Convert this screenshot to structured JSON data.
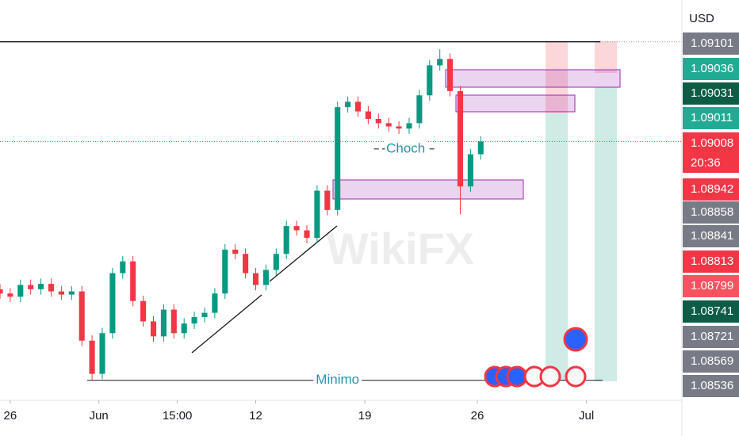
{
  "chart_data": {
    "type": "candlestick",
    "axis_unit": "USD",
    "watermark": "WikiFX",
    "up_color": "#089981",
    "down_color": "#f23645",
    "xlim": [
      0,
      200
    ],
    "ylim": [
      1.0877,
      1.0914
    ],
    "xticks": [
      {
        "value": 3,
        "label": "26"
      },
      {
        "value": 29,
        "label": "Jun"
      },
      {
        "value": 52,
        "label": "15:00"
      },
      {
        "value": 75,
        "label": "12"
      },
      {
        "value": 107,
        "label": "19"
      },
      {
        "value": 140,
        "label": "26"
      },
      {
        "value": 172,
        "label": "Jul"
      }
    ],
    "x": [
      0,
      3,
      6,
      9,
      12,
      15,
      18,
      21,
      24,
      27,
      30,
      33,
      36,
      39,
      42,
      45,
      48,
      51,
      54,
      57,
      60,
      63,
      66,
      69,
      72,
      75,
      78,
      81,
      84,
      87,
      90,
      93,
      96,
      99,
      102,
      105,
      108,
      111,
      114,
      117,
      120,
      123,
      126,
      129,
      132,
      135,
      138,
      141
    ],
    "open": [
      1.0887,
      1.08866,
      1.08863,
      1.08874,
      1.0887,
      1.08875,
      1.08868,
      1.08865,
      1.08868,
      1.08822,
      1.08791,
      1.08829,
      1.08885,
      1.08896,
      1.08859,
      1.0884,
      1.08826,
      1.08851,
      1.08829,
      1.08838,
      1.08844,
      1.08848,
      1.08866,
      1.08907,
      1.08903,
      1.08885,
      1.08874,
      1.08888,
      1.08903,
      1.08929,
      1.08925,
      1.08918,
      1.08962,
      1.08944,
      1.0904,
      1.09045,
      1.09036,
      1.09029,
      1.09025,
      1.09022,
      1.0902,
      1.09025,
      1.09051,
      1.09079,
      1.09085,
      1.09055,
      1.08966,
      1.08996
    ],
    "high": [
      1.08875,
      1.08871,
      1.08879,
      1.08879,
      1.0888,
      1.0888,
      1.08873,
      1.08873,
      1.08873,
      1.08827,
      1.08834,
      1.0889,
      1.08901,
      1.08901,
      1.08864,
      1.08845,
      1.08856,
      1.08856,
      1.08843,
      1.08849,
      1.08853,
      1.08871,
      1.08912,
      1.08912,
      1.08908,
      1.0889,
      1.08893,
      1.08908,
      1.08934,
      1.08934,
      1.0893,
      1.08967,
      1.08967,
      1.09045,
      1.0905,
      1.0905,
      1.09041,
      1.09034,
      1.0903,
      1.09027,
      1.0903,
      1.09056,
      1.09084,
      1.09094,
      1.0909,
      1.0906,
      1.09001,
      1.09013
    ],
    "low": [
      1.08861,
      1.08858,
      1.08858,
      1.08865,
      1.08865,
      1.08863,
      1.0886,
      1.0886,
      1.08817,
      1.08785,
      1.08786,
      1.08824,
      1.0888,
      1.08854,
      1.08835,
      1.08821,
      1.08821,
      1.08824,
      1.08824,
      1.08833,
      1.08839,
      1.08843,
      1.08861,
      1.08898,
      1.0888,
      1.08869,
      1.08869,
      1.08883,
      1.08898,
      1.0892,
      1.08913,
      1.08913,
      1.08939,
      1.08939,
      1.09035,
      1.09031,
      1.09024,
      1.0902,
      1.09017,
      1.09015,
      1.09015,
      1.0902,
      1.09046,
      1.09074,
      1.0905,
      1.0894,
      1.08961,
      1.08991
    ],
    "close": [
      1.08866,
      1.08863,
      1.08874,
      1.0887,
      1.08875,
      1.08868,
      1.08865,
      1.08868,
      1.08822,
      1.08791,
      1.08829,
      1.08885,
      1.08896,
      1.08859,
      1.0884,
      1.08826,
      1.08851,
      1.08829,
      1.08838,
      1.08844,
      1.08848,
      1.08866,
      1.08907,
      1.08903,
      1.08885,
      1.08874,
      1.08888,
      1.08903,
      1.08929,
      1.08925,
      1.08918,
      1.08962,
      1.08944,
      1.0904,
      1.09045,
      1.09036,
      1.09029,
      1.09025,
      1.09022,
      1.0902,
      1.09025,
      1.09051,
      1.09079,
      1.09085,
      1.09055,
      1.08966,
      1.08996,
      1.09008
    ],
    "price_labels": [
      {
        "value": 1.09101,
        "color": "#787b86"
      },
      {
        "value": 1.09036,
        "color": "#22ab94"
      },
      {
        "value": 1.09031,
        "color": "#0d5c45"
      },
      {
        "value": 1.09011,
        "color": "#22ab94"
      },
      {
        "value": 1.09008,
        "color": "#f23645",
        "countdown": "20:36"
      },
      {
        "value": 1.08942,
        "color": "#f23645"
      },
      {
        "value": 1.08858,
        "color": "#787b86"
      },
      {
        "value": 1.08841,
        "color": "#787b86"
      },
      {
        "value": 1.08813,
        "color": "#f23645"
      },
      {
        "value": 1.08799,
        "color": "#f7525f"
      },
      {
        "value": 1.08741,
        "color": "#0d5c45"
      },
      {
        "value": 1.08721,
        "color": "#787b86"
      },
      {
        "value": 1.08569,
        "color": "#787b86"
      },
      {
        "value": 1.08536,
        "color": "#787b86"
      }
    ],
    "annotations": [
      {
        "text": "Choch",
        "value": 1.09001,
        "x": 119
      },
      {
        "text": "Minimo",
        "value": 1.08785,
        "x": 99
      }
    ]
  }
}
